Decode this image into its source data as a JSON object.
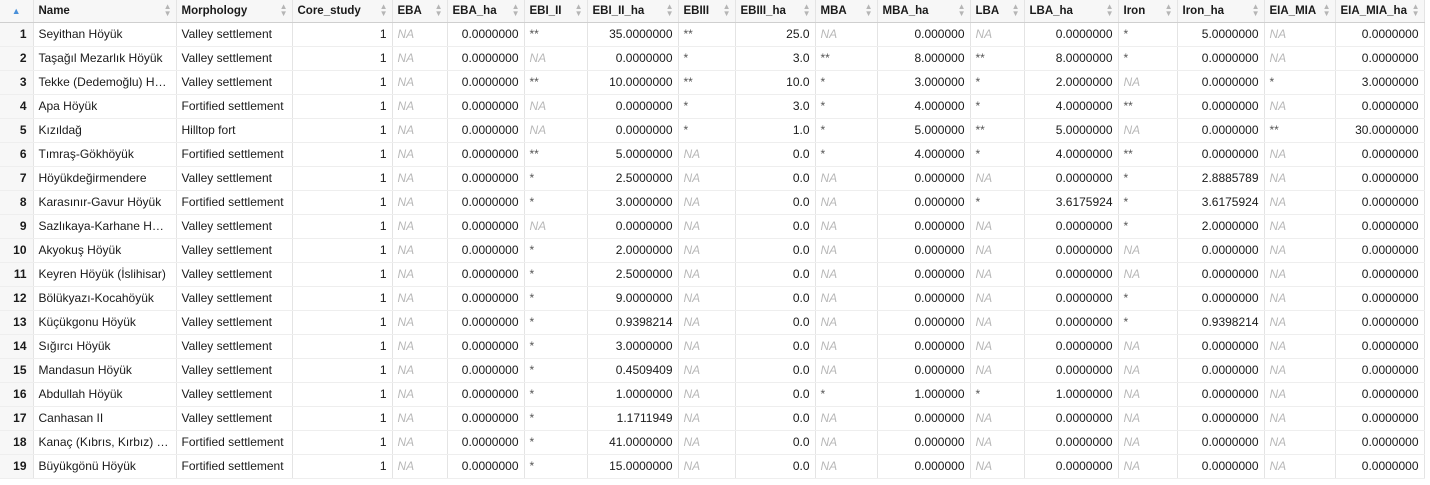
{
  "columns": [
    "Name",
    "Morphology",
    "Core_study",
    "EBA",
    "EBA_ha",
    "EBI_II",
    "EBI_II_ha",
    "EBIII",
    "EBIII_ha",
    "MBA",
    "MBA_ha",
    "LBA",
    "LBA_ha",
    "Iron",
    "Iron_ha",
    "EIA_MIA",
    "EIA_MIA_ha"
  ],
  "na_text": "NA",
  "rows": [
    {
      "n": "1",
      "c": [
        "Seyithan Höyük",
        "Valley settlement",
        "1",
        "NA",
        "0.0000000",
        "**",
        "35.0000000",
        "**",
        "25.0",
        "NA",
        "0.000000",
        "NA",
        "0.0000000",
        "*",
        "5.0000000",
        "NA",
        "0.0000000"
      ]
    },
    {
      "n": "2",
      "c": [
        "Taşağıl Mezarlık Höyük",
        "Valley settlement",
        "1",
        "NA",
        "0.0000000",
        "NA",
        "0.0000000",
        "*",
        "3.0",
        "**",
        "8.000000",
        "**",
        "8.0000000",
        "*",
        "0.0000000",
        "NA",
        "0.0000000"
      ]
    },
    {
      "n": "3",
      "c": [
        "Tekke (Dedemoğlu) Höyük",
        "Valley settlement",
        "1",
        "NA",
        "0.0000000",
        "**",
        "10.0000000",
        "**",
        "10.0",
        "*",
        "3.000000",
        "*",
        "2.0000000",
        "NA",
        "0.0000000",
        "*",
        "3.0000000"
      ]
    },
    {
      "n": "4",
      "c": [
        "Apa Höyük",
        "Fortified settlement",
        "1",
        "NA",
        "0.0000000",
        "NA",
        "0.0000000",
        "*",
        "3.0",
        "*",
        "4.000000",
        "*",
        "4.0000000",
        "**",
        "0.0000000",
        "NA",
        "0.0000000"
      ]
    },
    {
      "n": "5",
      "c": [
        "Kızıldağ",
        "Hilltop fort",
        "1",
        "NA",
        "0.0000000",
        "NA",
        "0.0000000",
        "*",
        "1.0",
        "*",
        "5.000000",
        "**",
        "5.0000000",
        "NA",
        "0.0000000",
        "**",
        "30.0000000"
      ]
    },
    {
      "n": "6",
      "c": [
        "Tımraş-Gökhöyük",
        "Fortified settlement",
        "1",
        "NA",
        "0.0000000",
        "**",
        "5.0000000",
        "NA",
        "0.0",
        "*",
        "4.000000",
        "*",
        "4.0000000",
        "**",
        "0.0000000",
        "NA",
        "0.0000000"
      ]
    },
    {
      "n": "7",
      "c": [
        "Höyükdeğirmendere",
        "Valley settlement",
        "1",
        "NA",
        "0.0000000",
        "*",
        "2.5000000",
        "NA",
        "0.0",
        "NA",
        "0.000000",
        "NA",
        "0.0000000",
        "*",
        "2.8885789",
        "NA",
        "0.0000000"
      ]
    },
    {
      "n": "8",
      "c": [
        "Karasınır-Gavur Höyük",
        "Fortified settlement",
        "1",
        "NA",
        "0.0000000",
        "*",
        "3.0000000",
        "NA",
        "0.0",
        "NA",
        "0.000000",
        "*",
        "3.6175924",
        "*",
        "3.6175924",
        "NA",
        "0.0000000"
      ]
    },
    {
      "n": "9",
      "c": [
        "Sazlıkaya-Karhane Höyük",
        "Valley settlement",
        "1",
        "NA",
        "0.0000000",
        "NA",
        "0.0000000",
        "NA",
        "0.0",
        "NA",
        "0.000000",
        "NA",
        "0.0000000",
        "*",
        "2.0000000",
        "NA",
        "0.0000000"
      ]
    },
    {
      "n": "10",
      "c": [
        "Akyokuş Höyük",
        "Valley settlement",
        "1",
        "NA",
        "0.0000000",
        "*",
        "2.0000000",
        "NA",
        "0.0",
        "NA",
        "0.000000",
        "NA",
        "0.0000000",
        "NA",
        "0.0000000",
        "NA",
        "0.0000000"
      ]
    },
    {
      "n": "11",
      "c": [
        "Keyren Höyük (İslihisar)",
        "Valley settlement",
        "1",
        "NA",
        "0.0000000",
        "*",
        "2.5000000",
        "NA",
        "0.0",
        "NA",
        "0.000000",
        "NA",
        "0.0000000",
        "NA",
        "0.0000000",
        "NA",
        "0.0000000"
      ]
    },
    {
      "n": "12",
      "c": [
        "Bölükyazı-Kocahöyük",
        "Valley settlement",
        "1",
        "NA",
        "0.0000000",
        "*",
        "9.0000000",
        "NA",
        "0.0",
        "NA",
        "0.000000",
        "NA",
        "0.0000000",
        "*",
        "0.0000000",
        "NA",
        "0.0000000"
      ]
    },
    {
      "n": "13",
      "c": [
        "Küçükgonu Höyük",
        "Valley settlement",
        "1",
        "NA",
        "0.0000000",
        "*",
        "0.9398214",
        "NA",
        "0.0",
        "NA",
        "0.000000",
        "NA",
        "0.0000000",
        "*",
        "0.9398214",
        "NA",
        "0.0000000"
      ]
    },
    {
      "n": "14",
      "c": [
        "Sığırcı Höyük",
        "Valley settlement",
        "1",
        "NA",
        "0.0000000",
        "*",
        "3.0000000",
        "NA",
        "0.0",
        "NA",
        "0.000000",
        "NA",
        "0.0000000",
        "NA",
        "0.0000000",
        "NA",
        "0.0000000"
      ]
    },
    {
      "n": "15",
      "c": [
        "Mandasun Höyük",
        "Valley settlement",
        "1",
        "NA",
        "0.0000000",
        "*",
        "0.4509409",
        "NA",
        "0.0",
        "NA",
        "0.000000",
        "NA",
        "0.0000000",
        "NA",
        "0.0000000",
        "NA",
        "0.0000000"
      ]
    },
    {
      "n": "16",
      "c": [
        "Abdullah Höyük",
        "Valley settlement",
        "1",
        "NA",
        "0.0000000",
        "*",
        "1.0000000",
        "NA",
        "0.0",
        "*",
        "1.000000",
        "*",
        "1.0000000",
        "NA",
        "0.0000000",
        "NA",
        "0.0000000"
      ]
    },
    {
      "n": "17",
      "c": [
        "Canhasan II",
        "Valley settlement",
        "1",
        "NA",
        "0.0000000",
        "*",
        "1.1711949",
        "NA",
        "0.0",
        "NA",
        "0.000000",
        "NA",
        "0.0000000",
        "NA",
        "0.0000000",
        "NA",
        "0.0000000"
      ]
    },
    {
      "n": "18",
      "c": [
        "Kanaç (Kıbrıs, Kırbız) Höyük",
        "Fortified settlement",
        "1",
        "NA",
        "0.0000000",
        "*",
        "41.0000000",
        "NA",
        "0.0",
        "NA",
        "0.000000",
        "NA",
        "0.0000000",
        "NA",
        "0.0000000",
        "NA",
        "0.0000000"
      ]
    },
    {
      "n": "19",
      "c": [
        "Büyükgönü Höyük",
        "Fortified settlement",
        "1",
        "NA",
        "0.0000000",
        "*",
        "15.0000000",
        "NA",
        "0.0",
        "NA",
        "0.000000",
        "NA",
        "0.0000000",
        "NA",
        "0.0000000",
        "NA",
        "0.0000000"
      ]
    }
  ]
}
